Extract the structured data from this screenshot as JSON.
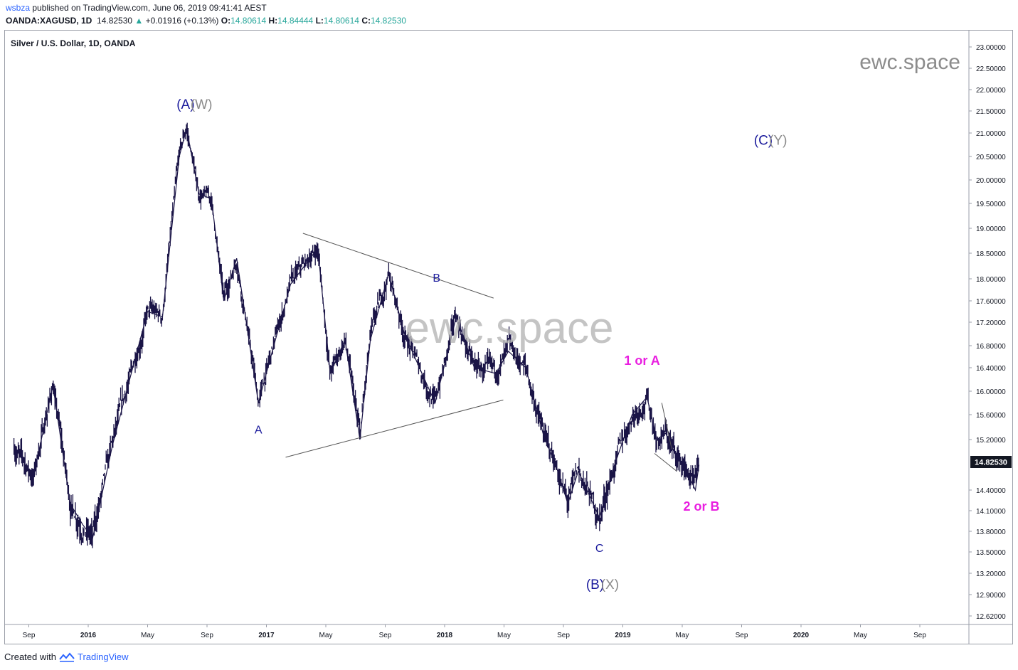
{
  "header": {
    "user": "wsbza",
    "published_text": "published on TradingView.com, June 06, 2019 09:41:41 AEST",
    "symbol": "OANDA:XAGUSD, 1D",
    "last": "14.82530",
    "change": "+0.01916 (+0.13%)",
    "o_label": "O:",
    "o_value": "14.80614",
    "h_label": "H:",
    "h_value": "14.84444",
    "l_label": "L:",
    "l_value": "14.80614",
    "c_label": "C:",
    "c_value": "14.82530"
  },
  "chart_title": "Silver / U.S. Dollar, 1D, OANDA",
  "watermark_small": "ewc.space",
  "watermark_big": "ewc.space",
  "price_label": "14.82530",
  "footer": {
    "created_with": "Created with",
    "brand": "TradingView"
  },
  "colors": {
    "candles": "#1a1446",
    "wave_blue": "#1a1a9c",
    "wave_grey": "#8a8a8a",
    "wave_magenta": "#e91ee0",
    "trendline": "#555555"
  },
  "chart_data": {
    "type": "line",
    "title": "Silver / U.S. Dollar, 1D, OANDA",
    "y_ticks": [
      "23.00000",
      "22.50000",
      "22.00000",
      "21.50000",
      "21.00000",
      "20.50000",
      "20.00000",
      "19.50000",
      "19.00000",
      "18.50000",
      "18.00000",
      "17.60000",
      "17.20000",
      "16.80000",
      "16.40000",
      "16.00000",
      "15.60000",
      "15.20000",
      "14.82530",
      "14.40000",
      "14.10000",
      "13.80000",
      "13.50000",
      "13.20000",
      "12.90000",
      "12.62000"
    ],
    "x_ticks": [
      "Sep",
      "2016",
      "May",
      "Sep",
      "2017",
      "May",
      "Sep",
      "2018",
      "May",
      "Sep",
      "2019",
      "May",
      "Sep",
      "2020",
      "May",
      "Sep"
    ],
    "ylim": [
      12.5,
      23.1
    ],
    "series": [
      {
        "x": [
          "2015-08-01",
          "2015-09-10",
          "2015-10-20",
          "2015-11-25",
          "2015-12-20",
          "2016-01-10",
          "2016-02-20",
          "2016-04-01",
          "2016-05-01",
          "2016-06-01",
          "2016-07-05",
          "2016-07-20",
          "2016-08-15",
          "2016-09-10",
          "2016-10-05",
          "2016-11-01",
          "2016-12-15",
          "2017-01-10",
          "2017-02-20",
          "2017-04-15",
          "2017-05-10",
          "2017-06-10",
          "2017-07-10",
          "2017-08-01",
          "2017-09-08",
          "2017-10-10",
          "2017-12-12",
          "2018-01-25",
          "2018-03-01",
          "2018-04-15",
          "2018-05-10",
          "2018-06-15",
          "2018-07-20",
          "2018-08-20",
          "2018-09-10",
          "2018-10-01",
          "2018-11-14",
          "2018-12-10",
          "2019-01-20",
          "2019-02-20",
          "2019-03-10",
          "2019-03-28",
          "2019-04-15",
          "2019-05-10",
          "2019-05-28",
          "2019-06-05"
        ],
        "values": [
          15.1,
          14.6,
          16.1,
          14.2,
          13.9,
          13.7,
          15.1,
          16.4,
          17.4,
          17.3,
          20.5,
          21.1,
          19.7,
          19.6,
          17.6,
          18.4,
          15.8,
          16.6,
          17.9,
          18.6,
          16.3,
          16.9,
          15.2,
          16.9,
          18.1,
          17.0,
          15.8,
          17.3,
          16.4,
          16.3,
          16.7,
          16.4,
          15.3,
          14.7,
          14.2,
          14.7,
          14.0,
          14.7,
          15.6,
          15.9,
          15.2,
          15.3,
          15.0,
          14.7,
          14.4,
          14.8
        ]
      }
    ],
    "trendlines": [
      {
        "from": [
          "2017-03-15",
          18.9
        ],
        "to": [
          "2018-04-10",
          17.65
        ]
      },
      {
        "from": [
          "2017-02-10",
          14.92
        ],
        "to": [
          "2018-04-30",
          15.85
        ]
      },
      {
        "from": [
          "2019-03-20",
          15.8
        ],
        "to": [
          "2019-04-10",
          15.05
        ]
      },
      {
        "from": [
          "2019-03-05",
          14.98
        ],
        "to": [
          "2019-04-20",
          14.7
        ]
      }
    ],
    "annotations": [
      {
        "text": "(A)",
        "x": "2016-07-18",
        "y": 21.55,
        "color": "blue"
      },
      {
        "text": "(W)",
        "x": "2016-08-20",
        "y": 21.55,
        "color": "grey"
      },
      {
        "text": "A",
        "x": "2016-12-15",
        "y": 15.3,
        "color": "blue"
      },
      {
        "text": "B",
        "x": "2017-12-15",
        "y": 17.95,
        "color": "blue"
      },
      {
        "text": "C",
        "x": "2018-11-14",
        "y": 13.5,
        "color": "blue"
      },
      {
        "text": "(B)",
        "x": "2018-11-05",
        "y": 12.98,
        "color": "blue"
      },
      {
        "text": "(X)",
        "x": "2018-12-05",
        "y": 12.98,
        "color": "grey"
      },
      {
        "text": "(C)",
        "x": "2019-10-15",
        "y": 20.75,
        "color": "blue"
      },
      {
        "text": "(Y)",
        "x": "2019-11-15",
        "y": 20.75,
        "color": "grey"
      },
      {
        "text": "1 or A",
        "x": "2019-02-10",
        "y": 16.45,
        "color": "magenta"
      },
      {
        "text": "2 or B",
        "x": "2019-06-10",
        "y": 14.1,
        "color": "magenta"
      }
    ]
  }
}
